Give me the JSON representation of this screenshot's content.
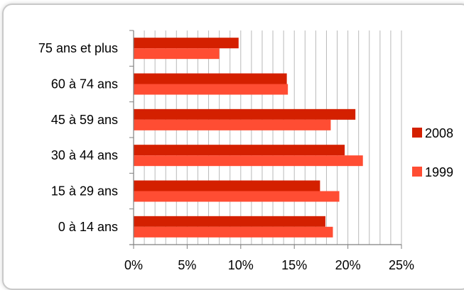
{
  "chart_data": {
    "type": "bar",
    "orientation": "horizontal",
    "title": "",
    "xlabel": "",
    "ylabel": "",
    "categories": [
      "75 ans et plus",
      "60 à 74 ans",
      "45 à 59 ans",
      "30 à 44 ans",
      "15 à 29 ans",
      "0 à 14 ans"
    ],
    "series": [
      {
        "name": "2008",
        "color": "#d42000",
        "values": [
          9.8,
          14.3,
          20.7,
          19.7,
          17.4,
          17.9
        ]
      },
      {
        "name": "1999",
        "color": "#ff4d33",
        "values": [
          8.0,
          14.4,
          18.4,
          21.4,
          19.2,
          18.6
        ]
      }
    ],
    "xlim": [
      0,
      25
    ],
    "xticks": [
      0,
      5,
      10,
      15,
      20,
      25
    ],
    "xtick_labels": [
      "0%",
      "5%",
      "10%",
      "15%",
      "20%",
      "25%"
    ],
    "grid": true,
    "legend_position": "right"
  }
}
